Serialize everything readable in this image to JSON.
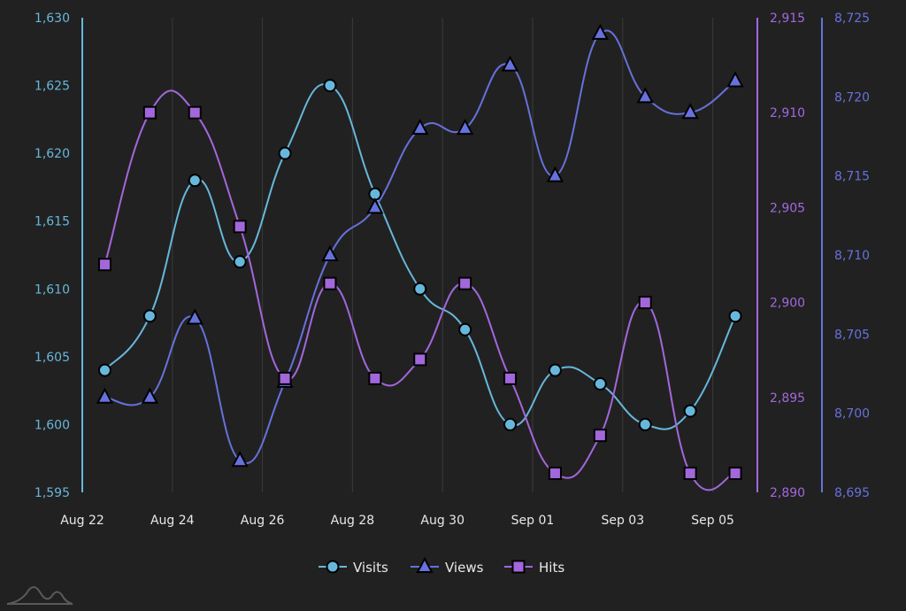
{
  "chart_data": {
    "type": "line",
    "title": "",
    "x": [
      "Aug 22",
      "Aug 23",
      "Aug 24",
      "Aug 25",
      "Aug 26",
      "Aug 27",
      "Aug 28",
      "Aug 29",
      "Aug 30",
      "Aug 31",
      "Sep 01",
      "Sep 02",
      "Sep 03",
      "Sep 04",
      "Sep 05"
    ],
    "x_tick_labels": [
      "Aug 22",
      "Aug 24",
      "Aug 26",
      "Aug 28",
      "Aug 30",
      "Sep 01",
      "Sep 03",
      "Sep 05"
    ],
    "grid": true,
    "legend_position": "bottom",
    "series": [
      {
        "name": "Visits",
        "marker": "circle",
        "color": "#67b7dc",
        "axis": "left",
        "values": [
          1604,
          1608,
          1618,
          1612,
          1620,
          1625,
          1617,
          1610,
          1607,
          1600,
          1604,
          1603,
          1600,
          1601,
          1608
        ]
      },
      {
        "name": "Views",
        "marker": "triangle",
        "color": "#6771dc",
        "axis": "right-outer",
        "values": [
          8701,
          8701,
          8706,
          8697,
          8702,
          8710,
          8713,
          8718,
          8718,
          8722,
          8715,
          8724,
          8720,
          8719,
          8721
        ]
      },
      {
        "name": "Hits",
        "marker": "square",
        "color": "#a367dc",
        "axis": "right-inner",
        "values": [
          2902,
          2910,
          2910,
          2904,
          2896,
          2901,
          2896,
          2897,
          2901,
          2896,
          2891,
          2893,
          2900,
          2891,
          2891
        ]
      }
    ],
    "axes": {
      "left": {
        "color": "#67b7dc",
        "ylim": [
          1595,
          1630
        ],
        "ticks": [
          "1,595",
          "1,600",
          "1,605",
          "1,610",
          "1,615",
          "1,620",
          "1,625",
          "1,630"
        ]
      },
      "right_inner": {
        "color": "#a367dc",
        "ylim": [
          2890,
          2915
        ],
        "ticks": [
          "2,890",
          "2,895",
          "2,900",
          "2,905",
          "2,910",
          "2,915"
        ]
      },
      "right_outer": {
        "color": "#6771dc",
        "ylim": [
          8695,
          8725
        ],
        "ticks": [
          "8,695",
          "8,700",
          "8,705",
          "8,710",
          "8,715",
          "8,720",
          "8,725"
        ]
      }
    }
  },
  "colors": {
    "background": "#212121",
    "grid": "#3a3a3a",
    "text": "#e8e8e8"
  }
}
